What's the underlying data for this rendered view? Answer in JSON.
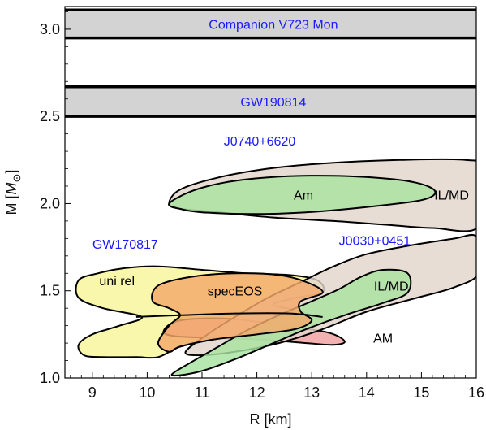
{
  "chart_data": {
    "type": "area",
    "xlabel": "R [km]",
    "ylabel_main": "M [",
    "ylabel_unit": "M",
    "ylabel_sub": "⊙",
    "ylabel_close": "]",
    "xlim": [
      8.5,
      16
    ],
    "ylim": [
      1.0,
      3.13
    ],
    "xticks": [
      "9",
      "10",
      "11",
      "12",
      "13",
      "14",
      "15",
      "16"
    ],
    "yticks": [
      "1.0",
      "1.5",
      "2.0",
      "2.5",
      "3.0"
    ],
    "bands": [
      {
        "label": "Companion V723 Mon",
        "y0": 2.95,
        "y1": 3.11,
        "color": "#d3d3d3",
        "label_color": "#1a1aff",
        "label_x": 12.3,
        "label_y": 3.03
      },
      {
        "label": "GW190814",
        "y0": 2.5,
        "y1": 2.67,
        "color": "#d3d3d3",
        "label_color": "#1a1aff",
        "label_x": 12.3,
        "label_y": 2.585
      }
    ],
    "regions": [
      {
        "name": "J0740+6620 IL/MD",
        "fill": "#e3d6cb",
        "points": [
          [
            10.4,
            2.0
          ],
          [
            10.6,
            2.08
          ],
          [
            11.3,
            2.15
          ],
          [
            12.2,
            2.2
          ],
          [
            13.2,
            2.23
          ],
          [
            14.6,
            2.25
          ],
          [
            15.8,
            2.25
          ],
          [
            16.05,
            2.2
          ],
          [
            16.05,
            1.87
          ],
          [
            15.2,
            1.86
          ],
          [
            14.3,
            1.88
          ],
          [
            13.4,
            1.9
          ],
          [
            12.3,
            1.92
          ],
          [
            11.3,
            1.95
          ],
          [
            10.6,
            1.97
          ]
        ]
      },
      {
        "name": "J0740+6620 Am",
        "fill": "#a8e3a0",
        "points": [
          [
            10.4,
            2.0
          ],
          [
            10.8,
            2.07
          ],
          [
            11.4,
            2.12
          ],
          [
            12.2,
            2.15
          ],
          [
            13.1,
            2.16
          ],
          [
            14.1,
            2.15
          ],
          [
            14.9,
            2.12
          ],
          [
            15.25,
            2.07
          ],
          [
            15.0,
            2.02
          ],
          [
            14.0,
            1.98
          ],
          [
            12.9,
            1.95
          ],
          [
            11.9,
            1.94
          ],
          [
            11.0,
            1.95
          ],
          [
            10.6,
            1.97
          ]
        ]
      },
      {
        "name": "GW170817 uni rel",
        "fill": "#f7f59a",
        "points": [
          [
            8.75,
            1.56
          ],
          [
            9.1,
            1.6
          ],
          [
            9.6,
            1.63
          ],
          [
            10.2,
            1.64
          ],
          [
            11.0,
            1.62
          ],
          [
            11.8,
            1.6
          ],
          [
            12.6,
            1.59
          ],
          [
            13.1,
            1.56
          ],
          [
            13.2,
            1.49
          ],
          [
            12.7,
            1.46
          ],
          [
            12.3,
            1.42
          ],
          [
            12.7,
            1.39
          ],
          [
            13.0,
            1.35
          ],
          [
            12.8,
            1.3
          ],
          [
            12.0,
            1.26
          ],
          [
            11.2,
            1.22
          ],
          [
            10.6,
            1.18
          ],
          [
            10.2,
            1.12
          ],
          [
            9.8,
            1.12
          ],
          [
            9.2,
            1.12
          ],
          [
            8.85,
            1.13
          ],
          [
            8.75,
            1.19
          ],
          [
            9.0,
            1.25
          ],
          [
            9.5,
            1.3
          ],
          [
            9.9,
            1.35
          ],
          [
            9.2,
            1.4
          ],
          [
            8.75,
            1.46
          ]
        ]
      },
      {
        "name": "GW170817 red",
        "fill": "#f2a0a0",
        "points": [
          [
            10.5,
            1.24
          ],
          [
            11.2,
            1.23
          ],
          [
            12.1,
            1.22
          ],
          [
            12.9,
            1.2
          ],
          [
            13.4,
            1.19
          ],
          [
            13.6,
            1.21
          ],
          [
            13.3,
            1.26
          ],
          [
            12.5,
            1.3
          ],
          [
            11.5,
            1.34
          ],
          [
            10.6,
            1.33
          ],
          [
            10.3,
            1.27
          ]
        ]
      },
      {
        "name": "J0030+0451 IL/MD",
        "fill": "#e3d6cb",
        "points": [
          [
            10.7,
            1.15
          ],
          [
            11.1,
            1.25
          ],
          [
            11.6,
            1.35
          ],
          [
            12.2,
            1.46
          ],
          [
            12.8,
            1.55
          ],
          [
            13.4,
            1.64
          ],
          [
            14.0,
            1.71
          ],
          [
            14.8,
            1.76
          ],
          [
            15.6,
            1.8
          ],
          [
            15.95,
            1.82
          ],
          [
            16.05,
            1.77
          ],
          [
            16.05,
            1.6
          ],
          [
            15.6,
            1.52
          ],
          [
            14.8,
            1.45
          ],
          [
            14.0,
            1.38
          ],
          [
            13.2,
            1.28
          ],
          [
            12.4,
            1.2
          ],
          [
            11.6,
            1.15
          ],
          [
            10.95,
            1.13
          ]
        ]
      },
      {
        "name": "J0030+0451 AM",
        "fill": "#a8e3a0",
        "points": [
          [
            10.45,
            1.02
          ],
          [
            10.8,
            1.09
          ],
          [
            11.3,
            1.18
          ],
          [
            11.8,
            1.27
          ],
          [
            12.4,
            1.36
          ],
          [
            13.0,
            1.44
          ],
          [
            13.5,
            1.51
          ],
          [
            13.9,
            1.58
          ],
          [
            14.3,
            1.62
          ],
          [
            14.75,
            1.6
          ],
          [
            14.75,
            1.49
          ],
          [
            14.3,
            1.43
          ],
          [
            13.6,
            1.36
          ],
          [
            12.9,
            1.28
          ],
          [
            12.3,
            1.2
          ],
          [
            11.7,
            1.12
          ],
          [
            11.1,
            1.05
          ],
          [
            10.7,
            1.02
          ]
        ]
      },
      {
        "name": "GW170817 specEOS",
        "fill": "#f4a86a",
        "points": [
          [
            10.1,
            1.44
          ],
          [
            10.2,
            1.53
          ],
          [
            10.8,
            1.58
          ],
          [
            11.6,
            1.6
          ],
          [
            12.4,
            1.59
          ],
          [
            12.9,
            1.55
          ],
          [
            13.2,
            1.49
          ],
          [
            12.8,
            1.44
          ],
          [
            12.8,
            1.38
          ],
          [
            13.0,
            1.33
          ],
          [
            12.7,
            1.28
          ],
          [
            12.0,
            1.25
          ],
          [
            11.2,
            1.22
          ],
          [
            10.6,
            1.18
          ],
          [
            10.4,
            1.15
          ],
          [
            10.2,
            1.2
          ],
          [
            10.4,
            1.3
          ],
          [
            10.6,
            1.36
          ],
          [
            10.4,
            1.4
          ]
        ]
      }
    ],
    "region_outlines": [
      {
        "name": "uni rel lower lobe edge",
        "points": [
          [
            9.8,
            1.35
          ],
          [
            10.6,
            1.36
          ],
          [
            11.6,
            1.37
          ],
          [
            12.6,
            1.37
          ],
          [
            13.2,
            1.35
          ]
        ]
      }
    ],
    "annotations": [
      {
        "text": "J0740+6620",
        "x": 12.05,
        "y": 2.36,
        "color": "#1a1aff"
      },
      {
        "text": "GW170817",
        "x": 9.6,
        "y": 1.77,
        "color": "#1a1aff"
      },
      {
        "text": "J0030+0451",
        "x": 14.15,
        "y": 1.79,
        "color": "#1a1aff"
      },
      {
        "text": "Am",
        "x": 12.85,
        "y": 2.05,
        "color": "#000000"
      },
      {
        "text": "IL/MD",
        "x": 15.55,
        "y": 2.05,
        "color": "#000000"
      },
      {
        "text": "uni rel",
        "x": 9.45,
        "y": 1.56,
        "color": "#000000"
      },
      {
        "text": "specEOS",
        "x": 11.6,
        "y": 1.5,
        "color": "#000000"
      },
      {
        "text": "IL/MD",
        "x": 14.45,
        "y": 1.53,
        "color": "#000000"
      },
      {
        "text": "AM",
        "x": 14.3,
        "y": 1.23,
        "color": "#000000"
      }
    ],
    "grid": false
  }
}
